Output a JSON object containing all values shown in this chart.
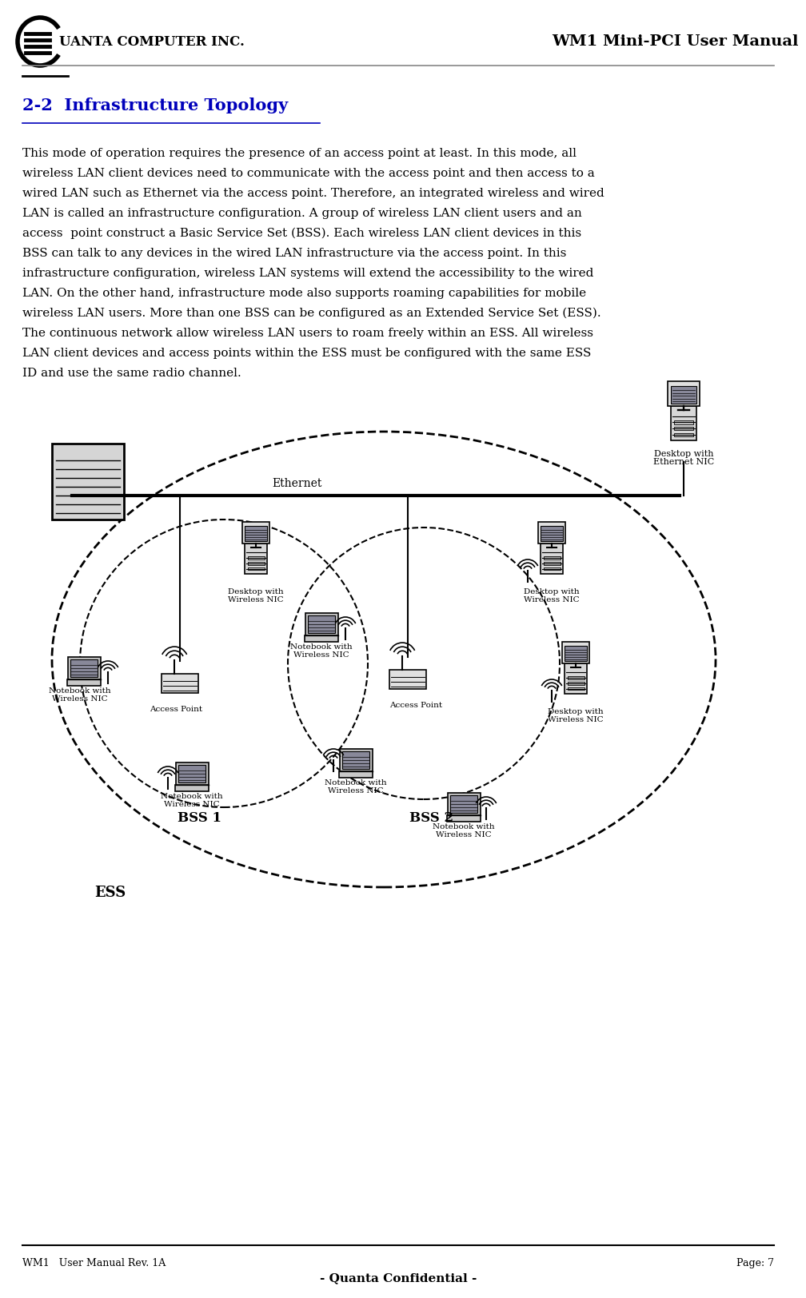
{
  "header_left": "UANTA COMPUTER INC.",
  "header_right": "WM1 Mini-PCI User Manual",
  "footer_left": "WM1   User Manual Rev. 1A",
  "footer_right": "Page: 7",
  "footer_center": "- Quanta Confidential -",
  "section_title": "2-2  Infrastructure Topology",
  "body_text": "This mode of operation requires the presence of an access point at least. In this mode, all\nwireless LAN client devices need to communicate with the access point and then access to a\nwired LAN such as Ethernet via the access point. Therefore, an integrated wireless and wired\nLAN is called an infrastructure configuration. A group of wireless LAN client users and an\naccess  point construct a Basic Service Set (BSS). Each wireless LAN client devices in this\nBSS can talk to any devices in the wired LAN infrastructure via the access point. In this\ninfrastructure configuration, wireless LAN systems will extend the accessibility to the wired\nLAN. On the other hand, infrastructure mode also supports roaming capabilities for mobile\nwireless LAN users. More than one BSS can be configured as an Extended Service Set (ESS).\nThe continuous network allow wireless LAN users to roam freely within an ESS. All wireless\nLAN client devices and access points within the ESS must be configured with the same ESS\nID and use the same radio channel.",
  "bg_color": "#ffffff",
  "text_color": "#000000",
  "title_color": "#0000bb",
  "header_line_color": "#888888",
  "footer_line_color": "#000000"
}
